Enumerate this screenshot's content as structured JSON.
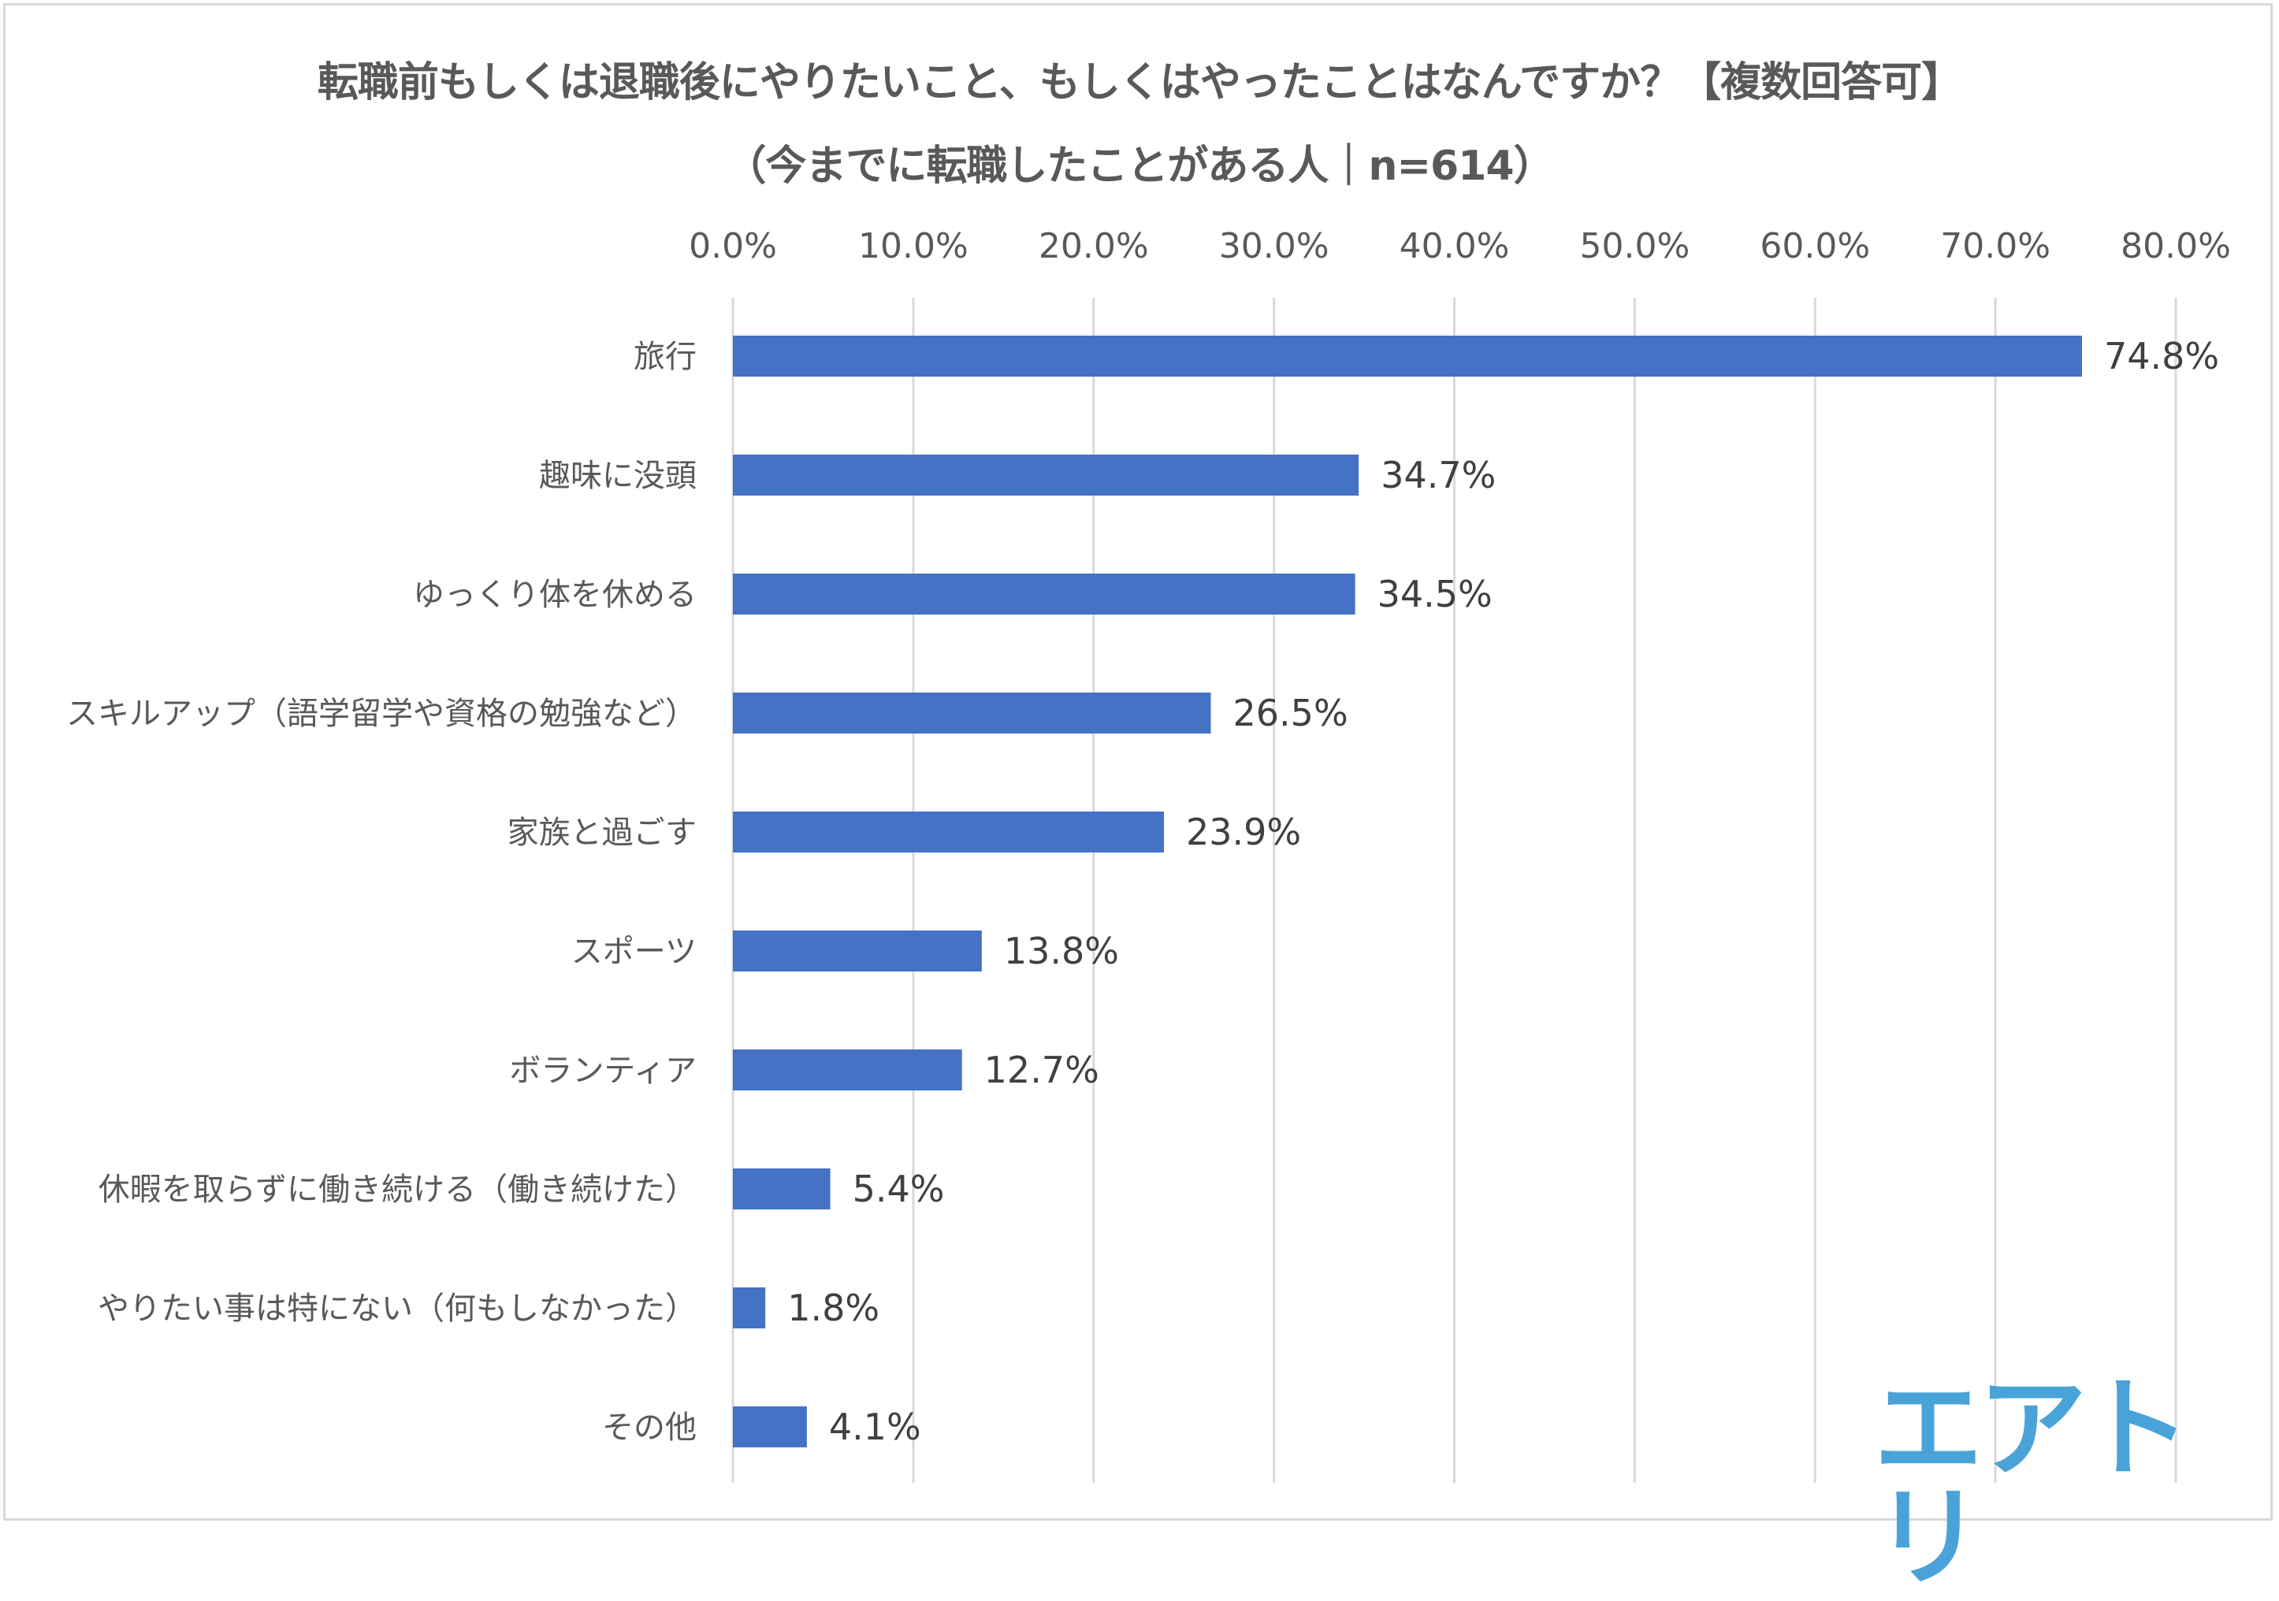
{
  "chart_data": {
    "type": "bar",
    "orientation": "horizontal",
    "title": "転職前もしくは退職後にやりたいこと、もしくはやったことはなんですか？【複数回答可】",
    "subtitle": "（今までに転職したことがある人｜n=614）",
    "categories": [
      "旅行",
      "趣味に没頭",
      "ゆっくり体を休める",
      "スキルアップ（語学留学や資格の勉強など）",
      "家族と過ごす",
      "スポーツ",
      "ボランティア",
      "休暇を取らずに働き続ける（働き続けた）",
      "やりたい事は特にない（何もしなかった）",
      "その他"
    ],
    "values": [
      74.8,
      34.7,
      34.5,
      26.5,
      23.9,
      13.8,
      12.7,
      5.4,
      1.8,
      4.1
    ],
    "data_labels": [
      "74.8%",
      "34.7%",
      "34.5%",
      "26.5%",
      "23.9%",
      "13.8%",
      "12.7%",
      "5.4%",
      "1.8%",
      "4.1%"
    ],
    "x_ticks": [
      "0.0%",
      "10.0%",
      "20.0%",
      "30.0%",
      "40.0%",
      "50.0%",
      "60.0%",
      "70.0%",
      "80.0%"
    ],
    "xlim": [
      0,
      80
    ],
    "xlabel": "",
    "ylabel": "",
    "grid": true,
    "axis_position": "top",
    "bar_color": "#4472c4"
  },
  "logo": {
    "text": "エアトリ",
    "color": "#4aa3d8"
  }
}
